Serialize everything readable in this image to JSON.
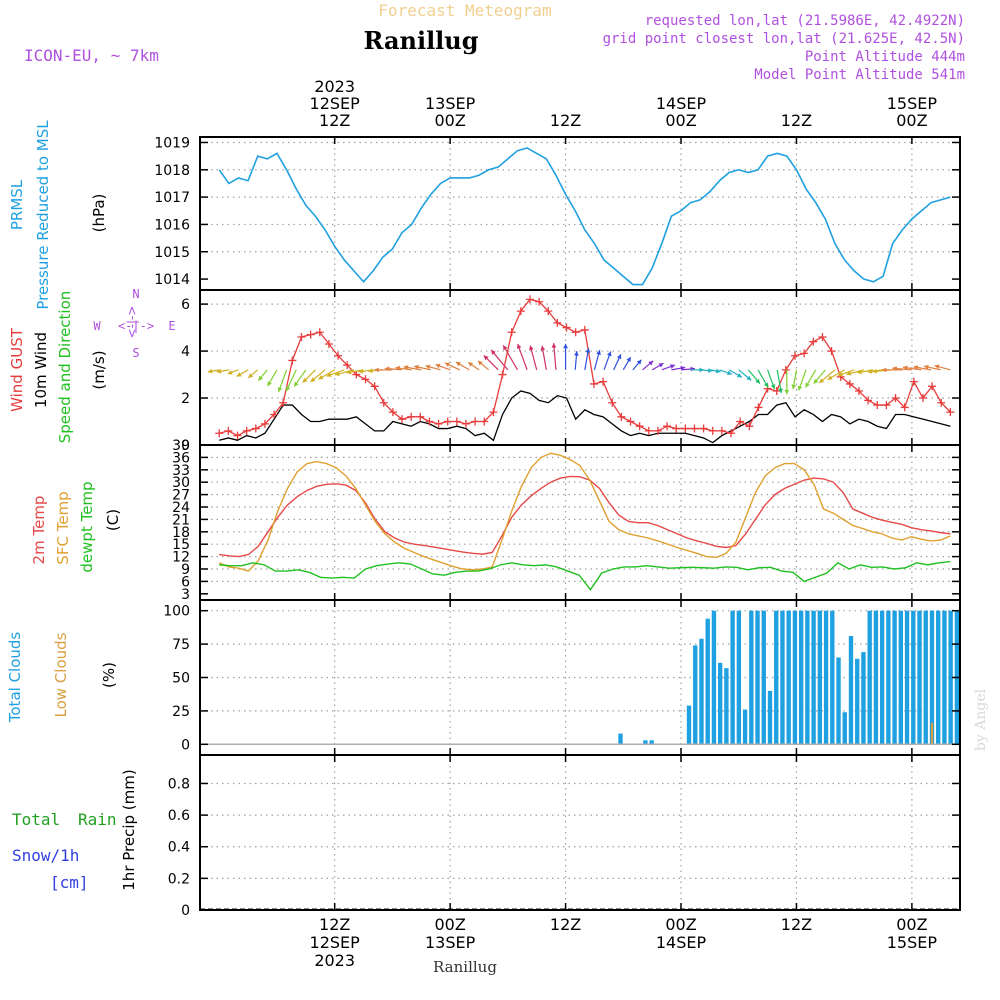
{
  "header": {
    "title_top": "Forecast Meteogram",
    "location": "Ranillug",
    "model": "ICON-EU, ~ 7km",
    "requested": "requested lon,lat (21.5986E, 42.4922N)",
    "grid_point": "grid point closest lon,lat (21.625E, 42.5N)",
    "point_alt": "Point Altitude 444m",
    "model_alt": "Model Point Altitude 541m",
    "footer_location": "Ranillug",
    "watermark": "by Angel"
  },
  "colors": {
    "pressure": "#1fa0e0",
    "gust": "#e83c3c",
    "wind": "#000000",
    "temp2m": "#e84848",
    "sfc": "#e0a030",
    "dewpt": "#20c020",
    "total_cloud": "#1fa0e0",
    "low_cloud": "#d8a040",
    "rain": "#20a020",
    "snow": "#3040e0",
    "purple": "#b050e0"
  },
  "time_axis": {
    "ticks_top": [
      {
        "t": 12,
        "line1": "2023",
        "line2": "12SEP",
        "line3": "12Z"
      },
      {
        "t": 24,
        "line1": "",
        "line2": "13SEP",
        "line3": "00Z"
      },
      {
        "t": 36,
        "line1": "",
        "line2": "",
        "line3": "12Z"
      },
      {
        "t": 48,
        "line1": "",
        "line2": "14SEP",
        "line3": "00Z"
      },
      {
        "t": 60,
        "line1": "",
        "line2": "",
        "line3": "12Z"
      },
      {
        "t": 72,
        "line1": "",
        "line2": "15SEP",
        "line3": "00Z"
      }
    ],
    "ticks_bottom": [
      {
        "t": 12,
        "line1": "12Z",
        "line2": "12SEP",
        "line3": "2023"
      },
      {
        "t": 24,
        "line1": "00Z",
        "line2": "13SEP",
        "line3": ""
      },
      {
        "t": 36,
        "line1": "12Z",
        "line2": "",
        "line3": ""
      },
      {
        "t": 48,
        "line1": "00Z",
        "line2": "14SEP",
        "line3": ""
      },
      {
        "t": 60,
        "line1": "12Z",
        "line2": "",
        "line3": ""
      },
      {
        "t": 72,
        "line1": "00Z",
        "line2": "15SEP",
        "line3": ""
      }
    ]
  },
  "panel_labels": {
    "pressure": [
      "PRMSL",
      "Pressure Reduced to MSL"
    ],
    "pressure_unit": "(hPa)",
    "wind": [
      "Wind GUST",
      "10m Wind",
      "Speed and Direction"
    ],
    "wind_unit": "(m/s)",
    "compass": {
      "n": "N",
      "s": "S",
      "e": "E",
      "w": "W",
      "arrows": "<-|->"
    },
    "temp": [
      "2m Temp",
      "SFC Temp",
      "dewpt Temp"
    ],
    "temp_unit": "(C)",
    "cloud": [
      "Total Clouds",
      "Low Clouds"
    ],
    "cloud_unit": "(%)",
    "precip": [
      "Total",
      "Rain",
      "Snow/1h",
      "[cm]"
    ],
    "precip_axis": "1hr Precip (mm)"
  },
  "chart_data": [
    {
      "type": "line",
      "name": "PRMSL",
      "x": [
        0,
        1,
        2,
        3,
        4,
        5,
        6,
        7,
        8,
        9,
        10,
        11,
        12,
        13,
        14,
        15,
        16,
        17,
        18,
        19,
        20,
        21,
        22,
        23,
        24,
        25,
        26,
        27,
        28,
        29,
        30,
        31,
        32,
        33,
        34,
        35,
        36,
        37,
        38,
        39,
        40,
        41,
        42,
        43,
        44,
        45,
        46,
        47,
        48,
        49,
        50,
        51,
        52,
        53,
        54,
        55,
        56,
        57,
        58,
        59,
        60,
        61,
        62,
        63,
        64,
        65,
        66,
        67,
        68,
        69,
        70,
        71,
        72,
        73,
        74,
        75,
        76
      ],
      "y": [
        1018.0,
        1017.5,
        1017.7,
        1017.6,
        1018.5,
        1018.4,
        1018.6,
        1018.0,
        1017.3,
        1016.7,
        1016.3,
        1015.8,
        1015.2,
        1014.7,
        1014.3,
        1013.9,
        1014.3,
        1014.8,
        1015.1,
        1015.7,
        1016.0,
        1016.6,
        1017.1,
        1017.5,
        1017.7,
        1017.7,
        1017.7,
        1017.8,
        1018.0,
        1018.1,
        1018.4,
        1018.7,
        1018.8,
        1018.6,
        1018.4,
        1017.8,
        1017.1,
        1016.5,
        1015.8,
        1015.3,
        1014.7,
        1014.4,
        1014.1,
        1013.8,
        1013.8,
        1014.4,
        1015.3,
        1016.3,
        1016.5,
        1016.8,
        1016.9,
        1017.2,
        1017.6,
        1017.9,
        1018.0,
        1017.9,
        1018.0,
        1018.5,
        1018.6,
        1018.5,
        1018.0,
        1017.3,
        1016.8,
        1016.2,
        1015.3,
        1014.7,
        1014.3,
        1014.0,
        1013.9,
        1014.1,
        1015.3,
        1015.8,
        1016.2,
        1016.5,
        1016.8,
        1016.9,
        1017.0
      ],
      "ylim": [
        1013.6,
        1019.2
      ],
      "yticks": [
        1014,
        1015,
        1016,
        1017,
        1018,
        1019
      ]
    },
    {
      "type": "line",
      "name": "Wind",
      "series": [
        {
          "name": "Wind GUST",
          "values": [
            0.5,
            0.6,
            0.4,
            0.6,
            0.7,
            0.9,
            1.3,
            1.8,
            3.6,
            4.6,
            4.7,
            4.8,
            4.3,
            3.8,
            3.4,
            3.0,
            2.8,
            2.5,
            1.8,
            1.4,
            1.1,
            1.2,
            1.2,
            1.0,
            0.9,
            1.0,
            1.0,
            0.9,
            1.0,
            1.0,
            1.4,
            3.0,
            4.8,
            5.7,
            6.2,
            6.1,
            5.7,
            5.2,
            5.0,
            4.8,
            4.9,
            2.6,
            2.7,
            1.8,
            1.2,
            1.0,
            0.8,
            0.6,
            0.6,
            0.8,
            0.7,
            0.7,
            0.7,
            0.7,
            0.6,
            0.6,
            0.5,
            1.0,
            0.8,
            1.6,
            2.4,
            2.3,
            3.2,
            3.8,
            3.9,
            4.4,
            4.6,
            4.0,
            2.9,
            2.6,
            2.3,
            1.9,
            1.7,
            1.7,
            2.0,
            1.6,
            2.7,
            2.0,
            2.5,
            1.8,
            1.4
          ]
        },
        {
          "name": "10m Wind",
          "values": [
            0.2,
            0.3,
            0.2,
            0.4,
            0.3,
            0.5,
            1.1,
            1.7,
            1.7,
            1.3,
            1.0,
            1.0,
            1.1,
            1.1,
            1.1,
            1.2,
            0.9,
            0.6,
            0.6,
            1.0,
            0.9,
            0.8,
            1.0,
            0.9,
            0.7,
            0.7,
            0.8,
            0.7,
            0.4,
            0.5,
            0.2,
            1.3,
            2.0,
            2.3,
            2.2,
            1.9,
            1.8,
            2.1,
            2.0,
            1.1,
            1.5,
            1.3,
            1.2,
            0.9,
            0.6,
            0.4,
            0.5,
            0.4,
            0.5,
            0.5,
            0.5,
            0.5,
            0.4,
            0.3,
            0.1,
            0.4,
            0.6,
            0.8,
            1.0,
            1.3,
            1.3,
            1.7,
            1.8,
            1.2,
            1.5,
            1.3,
            1.0,
            1.3,
            1.2,
            0.9,
            1.1,
            1.0,
            0.8,
            0.7,
            1.3,
            1.3,
            1.2,
            1.1,
            1.0,
            0.9,
            0.8
          ]
        }
      ],
      "x_start": 0,
      "ylim": [
        0,
        6.6
      ],
      "yticks": [
        0,
        2,
        4,
        6
      ],
      "arrow_dirs_deg": [
        260,
        260,
        250,
        240,
        230,
        220,
        210,
        200,
        205,
        215,
        225,
        230,
        240,
        250,
        255,
        260,
        262,
        265,
        270,
        275,
        278,
        280,
        282,
        285,
        290,
        295,
        300,
        305,
        310,
        315,
        320,
        330,
        340,
        345,
        350,
        355,
        0,
        5,
        10,
        15,
        20,
        25,
        30,
        40,
        50,
        60,
        70,
        80,
        85,
        90,
        95,
        100,
        110,
        120,
        130,
        140,
        150,
        160,
        170,
        180,
        190,
        200,
        210,
        220,
        230,
        240,
        250,
        255,
        260,
        262,
        265,
        270,
        275,
        278,
        280,
        282,
        285
      ]
    },
    {
      "type": "line",
      "name": "Temperature",
      "series": [
        {
          "name": "2m Temp",
          "values": [
            12.5,
            12.2,
            12.0,
            12.5,
            14.5,
            18.0,
            21.5,
            24.5,
            26.5,
            28.0,
            29.0,
            29.5,
            29.6,
            29.3,
            28.0,
            25.0,
            21.0,
            18.0,
            16.5,
            15.5,
            15.0,
            14.7,
            14.3,
            13.9,
            13.5,
            13.1,
            12.8,
            12.6,
            13.0,
            17.0,
            21.5,
            24.5,
            26.7,
            28.5,
            30.0,
            31.0,
            31.4,
            31.3,
            30.5,
            28.5,
            25.0,
            22.0,
            20.5,
            20.2,
            20.2,
            19.5,
            18.5,
            17.5,
            16.5,
            15.8,
            15.2,
            14.5,
            14.2,
            14.7,
            17.5,
            21.0,
            24.5,
            27.0,
            28.5,
            29.5,
            30.5,
            31.0,
            30.8,
            30.0,
            27.5,
            23.5,
            22.5,
            21.5,
            20.8,
            20.3,
            19.8,
            19.0,
            18.5,
            18.2,
            17.8,
            17.5
          ]
        },
        {
          "name": "SFC Temp",
          "values": [
            10.5,
            9.5,
            9.2,
            8.5,
            11.0,
            16.0,
            23.0,
            28.5,
            32.5,
            34.5,
            35.0,
            34.5,
            33.5,
            31.5,
            28.5,
            24.5,
            20.5,
            17.5,
            15.5,
            14.0,
            13.0,
            12.0,
            11.2,
            10.4,
            9.6,
            9.0,
            8.8,
            9.0,
            9.5,
            16.0,
            23.0,
            29.0,
            33.5,
            36.0,
            37.0,
            36.5,
            35.5,
            34.0,
            30.5,
            25.5,
            20.5,
            18.5,
            17.5,
            17.0,
            16.5,
            15.8,
            15.0,
            14.2,
            13.5,
            12.8,
            12.0,
            11.8,
            12.8,
            15.5,
            21.5,
            27.5,
            31.5,
            33.5,
            34.5,
            34.5,
            33.0,
            29.5,
            23.5,
            22.5,
            21.0,
            19.5,
            18.8,
            18.0,
            17.5,
            16.5,
            16.0,
            16.8,
            16.2,
            15.8,
            16.0,
            17.0
          ]
        },
        {
          "name": "dewpt Temp",
          "values": [
            10.0,
            9.8,
            9.8,
            10.5,
            10.0,
            8.5,
            8.5,
            8.8,
            8.2,
            7.0,
            6.8,
            7.0,
            6.8,
            9.0,
            9.8,
            10.2,
            10.5,
            10.2,
            9.0,
            7.8,
            7.5,
            8.2,
            8.5,
            8.5,
            9.0,
            10.0,
            10.5,
            10.0,
            9.8,
            10.0,
            9.5,
            8.5,
            7.5,
            4.0,
            8.0,
            9.0,
            9.5,
            9.5,
            9.8,
            9.5,
            9.2,
            9.3,
            9.4,
            9.3,
            9.2,
            9.5,
            9.4,
            8.8,
            9.3,
            9.4,
            8.5,
            8.2,
            6.0,
            7.0,
            8.0,
            10.5,
            9.0,
            10.0,
            9.4,
            9.5,
            9.0,
            9.3,
            10.5,
            10.0,
            10.5,
            10.8
          ]
        }
      ],
      "ylim": [
        1.5,
        39
      ],
      "yticks": [
        3,
        6,
        9,
        12,
        15,
        18,
        21,
        24,
        27,
        30,
        33,
        36,
        39
      ]
    },
    {
      "type": "bar",
      "name": "Clouds",
      "series": [
        {
          "name": "Total Clouds",
          "values": [
            0,
            0,
            0,
            0,
            0,
            0,
            0,
            0,
            0,
            0,
            0,
            0,
            0,
            0,
            0,
            0,
            0,
            0,
            0,
            0,
            0,
            0,
            0,
            0,
            0,
            0,
            0,
            0,
            0,
            0,
            0,
            0,
            0,
            0,
            0,
            0,
            0,
            0,
            0,
            0,
            0,
            0,
            0,
            0,
            0,
            0,
            0,
            0,
            0,
            0,
            0,
            0,
            0,
            0,
            0,
            0,
            0,
            0,
            0,
            0,
            0,
            0,
            0,
            0,
            0,
            0,
            0,
            8,
            0,
            0.5,
            0,
            3,
            3,
            0,
            0,
            0,
            0,
            0,
            29,
            74,
            79,
            94,
            100,
            61,
            57,
            100,
            100,
            26,
            100,
            100,
            100,
            40,
            100,
            100,
            100,
            100,
            100,
            100,
            100,
            100,
            100,
            100,
            65,
            24,
            81,
            64,
            69,
            100,
            100,
            100,
            100,
            100,
            100,
            100,
            100,
            100,
            100,
            100,
            100,
            100,
            100,
            100
          ]
        },
        {
          "name": "Low Clouds",
          "values": [
            0,
            0,
            0,
            0,
            0,
            0,
            0,
            0,
            0,
            0,
            0,
            0,
            0,
            0,
            0,
            0,
            0,
            0,
            0,
            0,
            0,
            0,
            0,
            0,
            0,
            0,
            0,
            0,
            0,
            0,
            0,
            0,
            0,
            0,
            0,
            0,
            0,
            0,
            0,
            0,
            0,
            0,
            0,
            0,
            0,
            0,
            0,
            0,
            0,
            0,
            0,
            0,
            0,
            0,
            0,
            0,
            0,
            0,
            0,
            0,
            0,
            0,
            0,
            0,
            0,
            0,
            0,
            0,
            0,
            0,
            0,
            0,
            0,
            0,
            0,
            0,
            0,
            0,
            0,
            0,
            0,
            0,
            0,
            0,
            0,
            0,
            0,
            0,
            0,
            0,
            0,
            0,
            0,
            0,
            0,
            0,
            0,
            0,
            0,
            0,
            0,
            0,
            0,
            0,
            0,
            0,
            0,
            0,
            0,
            0,
            0,
            0,
            0,
            0,
            0,
            0,
            0,
            16,
            0,
            0,
            0,
            0,
            0,
            0
          ]
        }
      ],
      "ylim": [
        -8,
        108
      ],
      "yticks": [
        0,
        25,
        50,
        75,
        100
      ]
    },
    {
      "type": "bar",
      "name": "Precipitation",
      "ylabel": "1hr Precip (mm)",
      "series": [
        {
          "name": "Total Rain",
          "values": []
        },
        {
          "name": "Snow/1h",
          "values": []
        }
      ],
      "ylim": [
        0,
        0.98
      ],
      "yticks": [
        0,
        0.2,
        0.4,
        0.6,
        0.8
      ],
      "ytick_labels": [
        "0",
        "0.2",
        "0.4",
        "0.6",
        "0.8"
      ]
    }
  ]
}
